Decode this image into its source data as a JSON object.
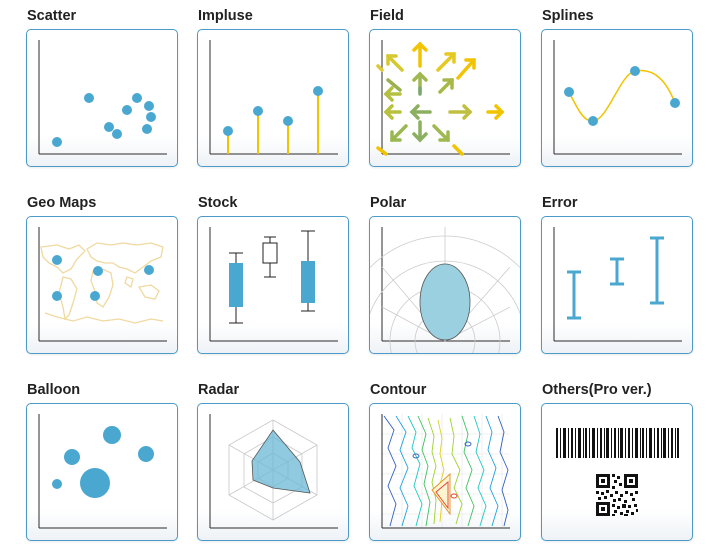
{
  "tiles": [
    {
      "label": "Scatter"
    },
    {
      "label": "Impluse"
    },
    {
      "label": "Field"
    },
    {
      "label": "Splines"
    },
    {
      "label": "Geo Maps"
    },
    {
      "label": "Stock"
    },
    {
      "label": "Polar"
    },
    {
      "label": "Error"
    },
    {
      "label": "Balloon"
    },
    {
      "label": "Radar"
    },
    {
      "label": "Contour"
    },
    {
      "label": "Others(Pro ver.)"
    }
  ],
  "colors": {
    "accent": "#4aa8d0",
    "border": "#4a9bc8",
    "axis": "#2b2b2b",
    "impulse_line": "#f2c300",
    "spline_line": "#f2c300",
    "map_land": "#f0d9a0",
    "polar_fill": "#9ad0e0",
    "radar_fill": "#6bb8d6",
    "contour_red": "#e04030"
  },
  "icons": [
    "scatter-chart-icon",
    "impulse-chart-icon",
    "vector-field-chart-icon",
    "spline-chart-icon",
    "geo-map-chart-icon",
    "stock-chart-icon",
    "polar-chart-icon",
    "error-bar-chart-icon",
    "balloon-chart-icon",
    "radar-chart-icon",
    "contour-chart-icon",
    "barcode-qr-icon"
  ]
}
